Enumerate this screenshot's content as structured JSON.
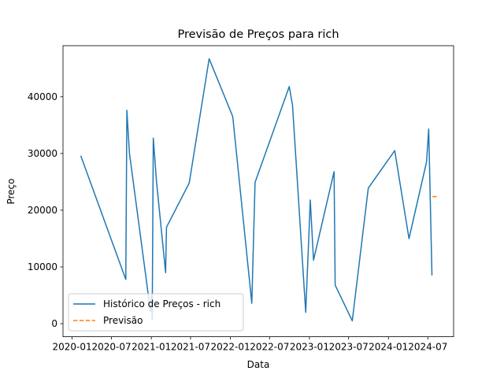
{
  "chart_data": {
    "type": "line",
    "title": "Previsão de Preços para rich",
    "xlabel": "Data",
    "ylabel": "Preço",
    "x_axis_type": "date",
    "xlim": [
      "2019-11-20",
      "2024-10-28"
    ],
    "ylim": [
      -2300,
      49000
    ],
    "x_ticks": [
      {
        "date": "2020-01-01",
        "label": "2020-01"
      },
      {
        "date": "2020-07-01",
        "label": "2020-07"
      },
      {
        "date": "2021-01-01",
        "label": "2021-01"
      },
      {
        "date": "2021-07-01",
        "label": "2021-07"
      },
      {
        "date": "2022-01-01",
        "label": "2022-01"
      },
      {
        "date": "2022-07-01",
        "label": "2022-07"
      },
      {
        "date": "2023-01-01",
        "label": "2023-01"
      },
      {
        "date": "2023-07-01",
        "label": "2023-07"
      },
      {
        "date": "2024-01-01",
        "label": "2024-01"
      },
      {
        "date": "2024-07-01",
        "label": "2024-07"
      }
    ],
    "y_ticks": [
      {
        "value": 0,
        "label": "0"
      },
      {
        "value": 10000,
        "label": "10000"
      },
      {
        "value": 20000,
        "label": "20000"
      },
      {
        "value": 30000,
        "label": "30000"
      },
      {
        "value": 40000,
        "label": "40000"
      }
    ],
    "grid": false,
    "legend_placement": "lower-left",
    "series": [
      {
        "name": "Histórico de Preços - rich",
        "color": "#1f77b4",
        "style": "solid",
        "points": [
          {
            "x": "2020-02-10",
            "y": 29600
          },
          {
            "x": "2020-09-05",
            "y": 7800
          },
          {
            "x": "2020-09-10",
            "y": 37600
          },
          {
            "x": "2020-09-22",
            "y": 30000
          },
          {
            "x": "2020-12-28",
            "y": 2200
          },
          {
            "x": "2021-01-02",
            "y": 5000
          },
          {
            "x": "2021-01-05",
            "y": 700
          },
          {
            "x": "2021-01-10",
            "y": 32700
          },
          {
            "x": "2021-01-25",
            "y": 25000
          },
          {
            "x": "2021-03-08",
            "y": 9000
          },
          {
            "x": "2021-03-12",
            "y": 17000
          },
          {
            "x": "2021-06-25",
            "y": 24800
          },
          {
            "x": "2021-09-25",
            "y": 46700
          },
          {
            "x": "2022-01-12",
            "y": 36500
          },
          {
            "x": "2022-04-10",
            "y": 3600
          },
          {
            "x": "2022-04-25",
            "y": 24900
          },
          {
            "x": "2022-09-30",
            "y": 41800
          },
          {
            "x": "2022-10-15",
            "y": 38500
          },
          {
            "x": "2022-12-15",
            "y": 2000
          },
          {
            "x": "2022-12-30",
            "y": 16000
          },
          {
            "x": "2023-01-05",
            "y": 21800
          },
          {
            "x": "2023-01-20",
            "y": 11200
          },
          {
            "x": "2023-04-25",
            "y": 26800
          },
          {
            "x": "2023-04-30",
            "y": 6800
          },
          {
            "x": "2023-07-18",
            "y": 500
          },
          {
            "x": "2023-09-30",
            "y": 23900
          },
          {
            "x": "2024-01-30",
            "y": 30500
          },
          {
            "x": "2024-04-05",
            "y": 15000
          },
          {
            "x": "2024-06-25",
            "y": 28500
          },
          {
            "x": "2024-07-05",
            "y": 34300
          },
          {
            "x": "2024-07-20",
            "y": 8500
          }
        ]
      },
      {
        "name": "Previsão",
        "color": "#ff7f0e",
        "style": "dashed",
        "points": [
          {
            "x": "2024-07-22",
            "y": 22400
          },
          {
            "x": "2024-08-15",
            "y": 22400
          }
        ]
      }
    ]
  }
}
